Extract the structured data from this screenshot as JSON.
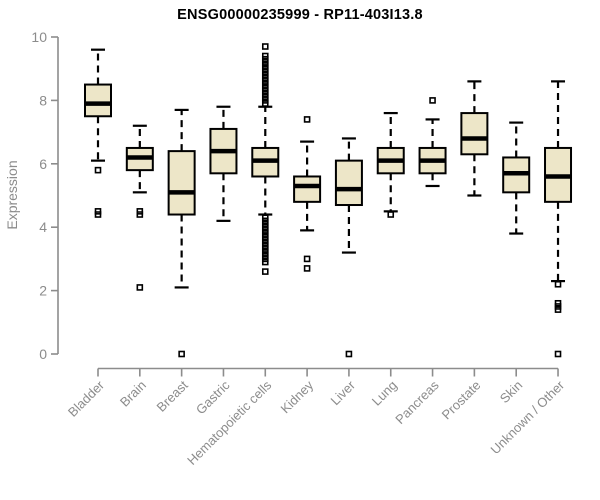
{
  "chart_data": {
    "type": "boxplot",
    "title": "ENSG00000235999 - RP11-403I13.8",
    "ylabel": "Expression",
    "xlabel": "",
    "ylim": [
      0,
      10
    ],
    "yticks": [
      0,
      2,
      4,
      6,
      8,
      10
    ],
    "grid": false,
    "legend": "none",
    "categories": [
      "Bladder",
      "Brain",
      "Breast",
      "Gastric",
      "Hematopoietic cells",
      "Kidney",
      "Liver",
      "Lung",
      "Pancreas",
      "Prostate",
      "Skin",
      "Unknown / Other"
    ],
    "boxes": [
      {
        "label": "Bladder",
        "whisker_low": 6.1,
        "q1": 7.5,
        "median": 7.9,
        "q3": 8.5,
        "whisker_high": 9.6,
        "outliers": [
          5.8,
          4.5,
          4.4
        ]
      },
      {
        "label": "Brain",
        "whisker_low": 5.1,
        "q1": 5.8,
        "median": 6.2,
        "q3": 6.5,
        "whisker_high": 7.2,
        "outliers": [
          4.5,
          4.4,
          2.1
        ]
      },
      {
        "label": "Breast",
        "whisker_low": 2.1,
        "q1": 4.4,
        "median": 5.1,
        "q3": 6.4,
        "whisker_high": 7.7,
        "outliers": [
          0
        ]
      },
      {
        "label": "Gastric",
        "whisker_low": 4.2,
        "q1": 5.7,
        "median": 6.4,
        "q3": 7.1,
        "whisker_high": 7.8,
        "outliers": []
      },
      {
        "label": "Hematopoietic cells",
        "whisker_low": 4.4,
        "q1": 5.6,
        "median": 6.1,
        "q3": 6.5,
        "whisker_high": 7.8,
        "outliers": [
          9.7,
          9.4,
          9.3,
          9.2,
          9.1,
          9.0,
          8.9,
          8.8,
          8.7,
          8.6,
          8.5,
          8.4,
          8.3,
          8.2,
          8.1,
          8.0,
          7.9,
          4.3,
          4.2,
          4.1,
          4.0,
          3.9,
          3.8,
          3.7,
          3.6,
          3.5,
          3.4,
          3.3,
          3.2,
          3.1,
          3.0,
          2.9,
          2.6
        ]
      },
      {
        "label": "Kidney",
        "whisker_low": 3.9,
        "q1": 4.8,
        "median": 5.3,
        "q3": 5.6,
        "whisker_high": 6.7,
        "outliers": [
          7.4,
          3.0,
          2.7
        ]
      },
      {
        "label": "Liver",
        "whisker_low": 3.2,
        "q1": 4.7,
        "median": 5.2,
        "q3": 6.1,
        "whisker_high": 6.8,
        "outliers": [
          0
        ]
      },
      {
        "label": "Lung",
        "whisker_low": 4.5,
        "q1": 5.7,
        "median": 6.1,
        "q3": 6.5,
        "whisker_high": 7.6,
        "outliers": [
          4.4
        ]
      },
      {
        "label": "Pancreas",
        "whisker_low": 5.3,
        "q1": 5.7,
        "median": 6.1,
        "q3": 6.5,
        "whisker_high": 7.4,
        "outliers": [
          8.0
        ]
      },
      {
        "label": "Prostate",
        "whisker_low": 5.0,
        "q1": 6.3,
        "median": 6.8,
        "q3": 7.6,
        "whisker_high": 8.6,
        "outliers": []
      },
      {
        "label": "Skin",
        "whisker_low": 3.8,
        "q1": 5.1,
        "median": 5.7,
        "q3": 6.2,
        "whisker_high": 7.3,
        "outliers": []
      },
      {
        "label": "Unknown / Other",
        "whisker_low": 2.3,
        "q1": 4.8,
        "median": 5.6,
        "q3": 6.5,
        "whisker_high": 8.6,
        "outliers": [
          2.2,
          1.6,
          1.5,
          1.4,
          0
        ]
      }
    ],
    "colors": {
      "box_fill": "#EDE6C8",
      "box_stroke": "#000000",
      "median": "#000000",
      "whisker": "#000000",
      "outlier": "#000000",
      "axis": "#8C8C8C",
      "tick_text": "#8C8C8C",
      "title_text": "#000000",
      "background": "#FFFFFF"
    }
  }
}
